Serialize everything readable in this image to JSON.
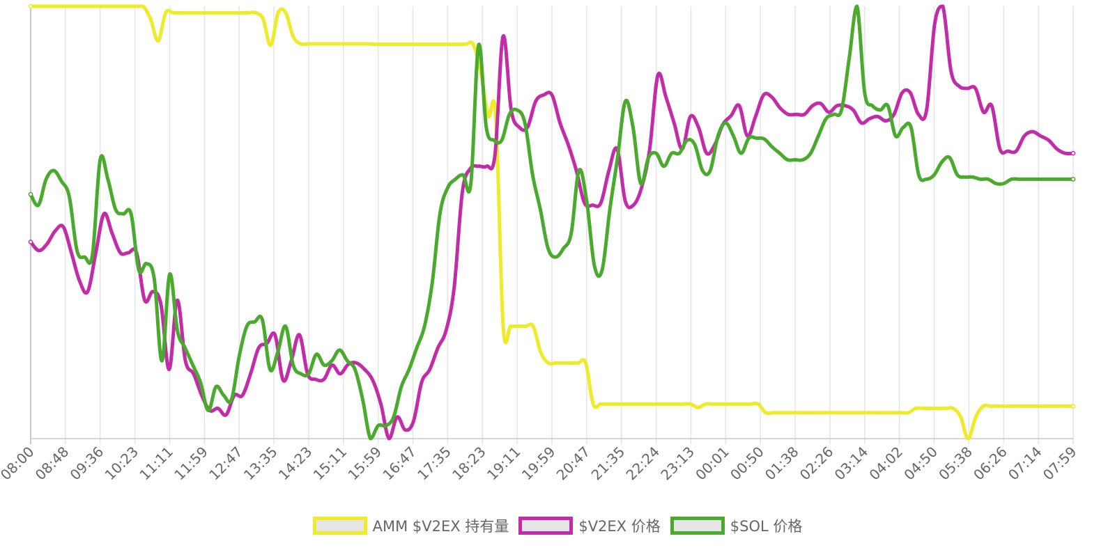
{
  "chart_data": {
    "type": "line",
    "title": "",
    "xlabel": "",
    "ylabel": "",
    "grid": true,
    "legend_position": "bottom",
    "x_tick_labels": [
      "08:00",
      "08:48",
      "09:36",
      "10:23",
      "11:11",
      "11:59",
      "12:47",
      "13:35",
      "14:23",
      "15:11",
      "15:59",
      "16:47",
      "17:35",
      "18:23",
      "19:11",
      "19:59",
      "20:47",
      "21:35",
      "22:24",
      "23:13",
      "00:01",
      "00:50",
      "01:38",
      "02:26",
      "03:14",
      "04:02",
      "04:50",
      "05:38",
      "06:26",
      "07:14",
      "07:59"
    ],
    "x_range": [
      "08:00",
      "07:59"
    ],
    "y_range_normalized": [
      0,
      1
    ],
    "series": [
      {
        "name": "AMM $V2EX 持有量",
        "color": "#eeeb28",
        "values": [
          1.0,
          1.0,
          1.0,
          1.0,
          1.0,
          1.0,
          1.0,
          1.0,
          1.0,
          1.0,
          1.0,
          1.0,
          1.0,
          1.0,
          1.0,
          1.0,
          0.97,
          0.92,
          0.985,
          0.985,
          0.985,
          0.985,
          0.985,
          0.985,
          0.985,
          0.985,
          0.985,
          0.985,
          0.985,
          0.985,
          0.985,
          0.97,
          0.91,
          0.985,
          0.985,
          0.93,
          0.913,
          0.913,
          0.913,
          0.913,
          0.913,
          0.913,
          0.913,
          0.913,
          0.913,
          0.913,
          0.912,
          0.912,
          0.912,
          0.912,
          0.912,
          0.912,
          0.912,
          0.912,
          0.912,
          0.912,
          0.912,
          0.912,
          0.912,
          0.912,
          0.85,
          0.747,
          0.747,
          0.26,
          0.26,
          0.26,
          0.26,
          0.26,
          0.2,
          0.175,
          0.175,
          0.175,
          0.175,
          0.175,
          0.175,
          0.08,
          0.08,
          0.08,
          0.08,
          0.08,
          0.08,
          0.08,
          0.08,
          0.08,
          0.08,
          0.08,
          0.08,
          0.08,
          0.08,
          0.072,
          0.08,
          0.08,
          0.08,
          0.08,
          0.08,
          0.08,
          0.08,
          0.08,
          0.06,
          0.06,
          0.06,
          0.06,
          0.06,
          0.06,
          0.06,
          0.06,
          0.06,
          0.06,
          0.06,
          0.06,
          0.06,
          0.06,
          0.06,
          0.06,
          0.06,
          0.06,
          0.06,
          0.06,
          0.07,
          0.07,
          0.07,
          0.07,
          0.07,
          0.07,
          0.05,
          0.0,
          0.05,
          0.075,
          0.075,
          0.075,
          0.075,
          0.075,
          0.075,
          0.075,
          0.075,
          0.075,
          0.075,
          0.075,
          0.075,
          0.075
        ]
      },
      {
        "name": "$V2EX 价格",
        "color": "#c22ca8",
        "values": [
          0.455,
          0.435,
          0.45,
          0.48,
          0.49,
          0.43,
          0.365,
          0.34,
          0.43,
          0.52,
          0.475,
          0.43,
          0.43,
          0.43,
          0.32,
          0.34,
          0.31,
          0.16,
          0.32,
          0.18,
          0.15,
          0.1,
          0.065,
          0.07,
          0.055,
          0.1,
          0.1,
          0.15,
          0.21,
          0.22,
          0.24,
          0.135,
          0.18,
          0.24,
          0.15,
          0.137,
          0.137,
          0.17,
          0.15,
          0.172,
          0.175,
          0.16,
          0.135,
          0.08,
          0.0,
          0.05,
          0.02,
          0.04,
          0.13,
          0.16,
          0.21,
          0.25,
          0.35,
          0.57,
          0.625,
          0.63,
          0.63,
          0.655,
          0.93,
          0.76,
          0.72,
          0.72,
          0.78,
          0.795,
          0.795,
          0.73,
          0.68,
          0.62,
          0.545,
          0.54,
          0.545,
          0.62,
          0.67,
          0.55,
          0.54,
          0.58,
          0.67,
          0.84,
          0.79,
          0.73,
          0.67,
          0.745,
          0.72,
          0.66,
          0.68,
          0.727,
          0.747,
          0.77,
          0.7,
          0.745,
          0.795,
          0.79,
          0.765,
          0.75,
          0.75,
          0.75,
          0.77,
          0.775,
          0.755,
          0.77,
          0.77,
          0.76,
          0.73,
          0.74,
          0.745,
          0.735,
          0.75,
          0.8,
          0.8,
          0.75,
          0.76,
          0.96,
          1.0,
          0.85,
          0.815,
          0.81,
          0.81,
          0.755,
          0.77,
          0.67,
          0.665,
          0.665,
          0.7,
          0.71,
          0.7,
          0.69,
          0.67,
          0.66,
          0.66
        ]
      },
      {
        "name": "$SOL 价格",
        "color": "#4aaa2d",
        "values": [
          0.565,
          0.54,
          0.6,
          0.62,
          0.595,
          0.56,
          0.435,
          0.42,
          0.425,
          0.645,
          0.6,
          0.53,
          0.52,
          0.52,
          0.39,
          0.405,
          0.37,
          0.18,
          0.38,
          0.25,
          0.21,
          0.17,
          0.13,
          0.065,
          0.12,
          0.1,
          0.09,
          0.19,
          0.26,
          0.27,
          0.275,
          0.16,
          0.2,
          0.26,
          0.17,
          0.15,
          0.15,
          0.195,
          0.17,
          0.18,
          0.205,
          0.18,
          0.16,
          0.09,
          0.0,
          0.03,
          0.03,
          0.05,
          0.12,
          0.16,
          0.21,
          0.26,
          0.36,
          0.52,
          0.58,
          0.6,
          0.61,
          0.59,
          0.91,
          0.72,
          0.69,
          0.69,
          0.75,
          0.76,
          0.73,
          0.61,
          0.53,
          0.44,
          0.42,
          0.44,
          0.475,
          0.62,
          0.55,
          0.4,
          0.39,
          0.53,
          0.65,
          0.78,
          0.72,
          0.59,
          0.65,
          0.66,
          0.63,
          0.66,
          0.66,
          0.69,
          0.68,
          0.62,
          0.62,
          0.7,
          0.73,
          0.7,
          0.66,
          0.695,
          0.695,
          0.693,
          0.675,
          0.66,
          0.645,
          0.645,
          0.645,
          0.66,
          0.7,
          0.74,
          0.75,
          0.76,
          0.88,
          1.0,
          0.8,
          0.77,
          0.76,
          0.77,
          0.7,
          0.72,
          0.72,
          0.61,
          0.6,
          0.61,
          0.64,
          0.65,
          0.61,
          0.605,
          0.605,
          0.6,
          0.6,
          0.59,
          0.59,
          0.6,
          0.6,
          0.6,
          0.6,
          0.6,
          0.6,
          0.6,
          0.6,
          0.6
        ]
      }
    ]
  },
  "legend": {
    "items": [
      {
        "label": "AMM $V2EX 持有量",
        "color": "#eeeb28"
      },
      {
        "label": "$V2EX 价格",
        "color": "#c22ca8"
      },
      {
        "label": "$SOL 价格",
        "color": "#4aaa2d"
      }
    ]
  }
}
